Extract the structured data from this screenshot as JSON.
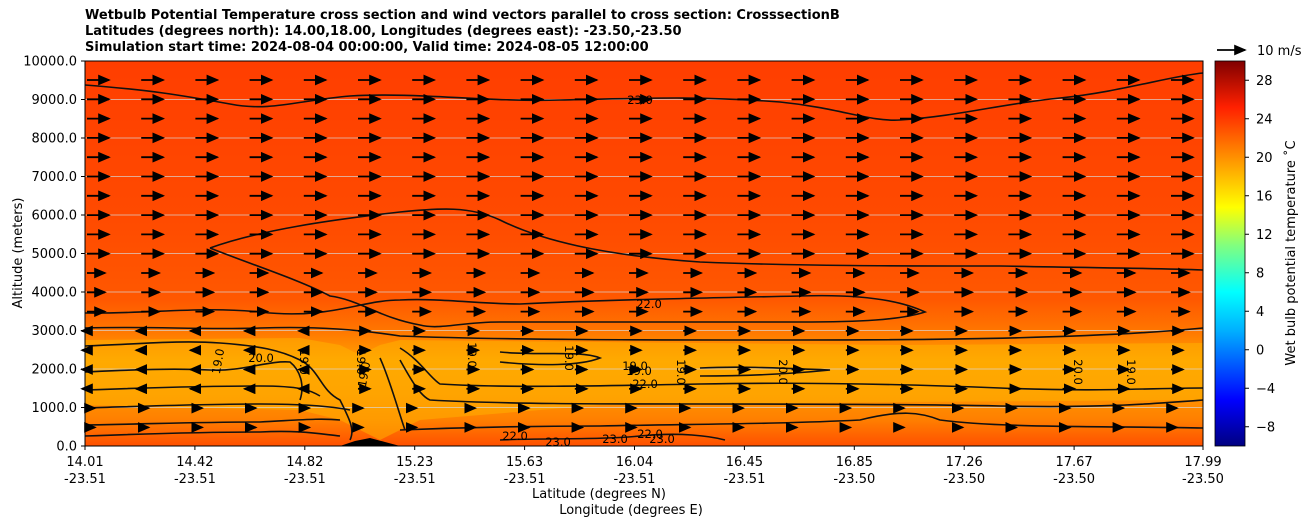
{
  "chart_data": {
    "type": "heatmap",
    "title_lines": [
      "Wetbulb Potential Temperature cross section and wind vectors parallel to cross section: CrosssectionB",
      "Latitudes (degrees north): 14.00,18.00, Longitudes (degrees east): -23.50,-23.50",
      "Simulation start time: 2024-08-04 00:00:00, Valid time: 2024-08-05 12:00:00"
    ],
    "ylabel": "Altitude (meters)",
    "xlabel_lat": "Latitude (degrees N)",
    "xlabel_lon": "Longitude (degrees E)",
    "ylim": [
      0,
      10000
    ],
    "y_ticks": [
      "0.0",
      "1000.0",
      "2000.0",
      "3000.0",
      "4000.0",
      "5000.0",
      "6000.0",
      "7000.0",
      "8000.0",
      "9000.0",
      "10000.0"
    ],
    "x_ticks": [
      {
        "lat": "14.01",
        "lon": "-23.51"
      },
      {
        "lat": "14.42",
        "lon": "-23.51"
      },
      {
        "lat": "14.82",
        "lon": "-23.51"
      },
      {
        "lat": "15.23",
        "lon": "-23.51"
      },
      {
        "lat": "15.63",
        "lon": "-23.51"
      },
      {
        "lat": "16.04",
        "lon": "-23.51"
      },
      {
        "lat": "16.45",
        "lon": "-23.51"
      },
      {
        "lat": "16.85",
        "lon": "-23.50"
      },
      {
        "lat": "17.26",
        "lon": "-23.50"
      },
      {
        "lat": "17.67",
        "lon": "-23.50"
      },
      {
        "lat": "17.99",
        "lon": "-23.50"
      }
    ],
    "colorbar": {
      "label": "Wet bulb potential temperature ˚C",
      "range": [
        -10,
        30
      ],
      "ticks": [
        "28",
        "24",
        "20",
        "16",
        "12",
        "8",
        "4",
        "0",
        "−4",
        "−8"
      ]
    },
    "contour_labels": [
      "23.0",
      "22.0",
      "19.0",
      "20.0",
      "19.0",
      "19.0",
      "19.0",
      "19.0",
      "19.0",
      "19.0",
      "19.0",
      "19.0",
      "20.0",
      "22.0",
      "22.0",
      "22.0",
      "23.0",
      "23.0",
      "23.0",
      "20.0",
      "19.0"
    ],
    "quiver_key": "10 m/s",
    "colors": {
      "upper": "#ff4a00",
      "mid": "#ff7a00",
      "low": "#ffac00",
      "lowest": "#ff5a00"
    }
  }
}
